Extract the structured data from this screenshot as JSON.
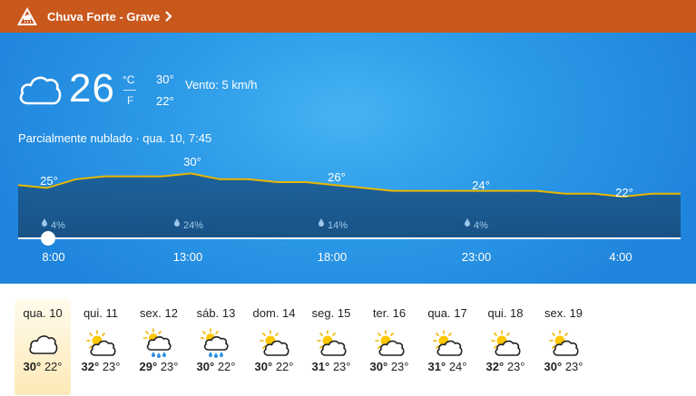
{
  "alert": {
    "text": "Chuva Forte - Grave",
    "icon": "warning-triangle-icon",
    "color": "#c9581d"
  },
  "current": {
    "temp": "26",
    "unit_c": "°C",
    "unit_f": "F",
    "high": "30°",
    "low": "22°",
    "wind": "Vento: 5 km/h",
    "condition": "Parcialmente nublado · qua. 10, 7:45",
    "icon": "cloud-icon"
  },
  "hourly": {
    "temp_labels": [
      "25°",
      "30°",
      "26°",
      "24°",
      "22°"
    ],
    "precip_labels": [
      "4%",
      "24%",
      "14%",
      "4%"
    ],
    "time_labels": [
      "8:00",
      "13:00",
      "18:00",
      "23:00",
      "4:00"
    ],
    "temps": [
      26,
      25,
      28,
      29,
      29,
      29,
      30,
      28,
      28,
      27,
      27,
      26,
      25,
      24,
      24,
      24,
      24,
      24,
      24,
      23,
      23,
      22,
      23,
      23
    ],
    "line_color": "#e9b600"
  },
  "daily": [
    {
      "day": "qua. 10",
      "icon": "cloud-icon",
      "high": "30°",
      "low": "22°",
      "selected": true
    },
    {
      "day": "qui. 11",
      "icon": "partly-cloudy-icon",
      "high": "32°",
      "low": "23°"
    },
    {
      "day": "sex. 12",
      "icon": "rain-icon",
      "high": "29°",
      "low": "23°"
    },
    {
      "day": "sáb. 13",
      "icon": "rain-icon",
      "high": "30°",
      "low": "22°"
    },
    {
      "day": "dom. 14",
      "icon": "partly-cloudy-icon",
      "high": "30°",
      "low": "22°"
    },
    {
      "day": "seg. 15",
      "icon": "partly-cloudy-icon",
      "high": "31°",
      "low": "23°"
    },
    {
      "day": "ter. 16",
      "icon": "partly-cloudy-icon",
      "high": "30°",
      "low": "23°"
    },
    {
      "day": "qua. 17",
      "icon": "partly-cloudy-icon",
      "high": "31°",
      "low": "24°"
    },
    {
      "day": "qui. 18",
      "icon": "partly-cloudy-icon",
      "high": "32°",
      "low": "23°"
    },
    {
      "day": "sex. 19",
      "icon": "partly-cloudy-icon",
      "high": "30°",
      "low": "23°"
    }
  ]
}
